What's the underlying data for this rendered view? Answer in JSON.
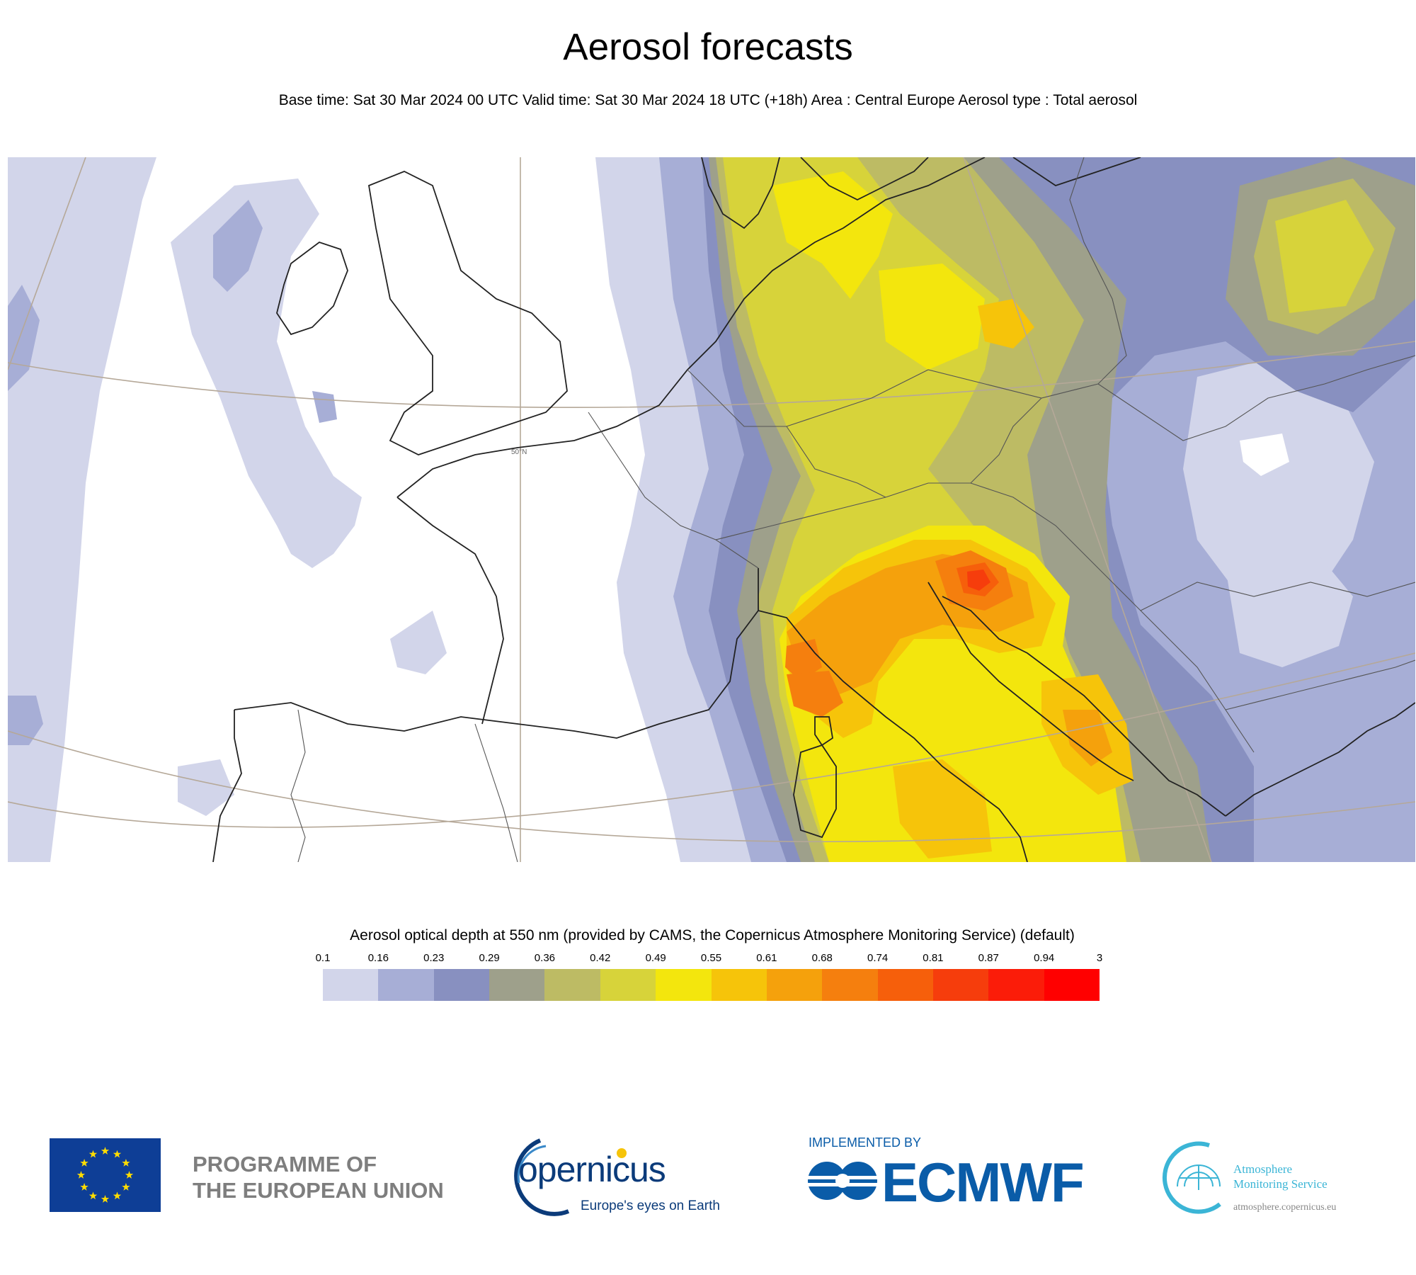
{
  "header": {
    "title": "Aerosol forecasts",
    "subtitle": "Base time: Sat 30 Mar 2024 00 UTC Valid time: Sat 30 Mar 2024 18 UTC (+18h) Area : Central Europe Aerosol type : Total aerosol"
  },
  "map": {
    "parallel_label": "50°N",
    "colors": {
      "land_border": "#222222",
      "graticule": "#b5a898"
    }
  },
  "legend": {
    "title": "Aerosol optical depth at 550 nm (provided by CAMS, the Copernicus Atmosphere Monitoring Service) (default)",
    "ticks": [
      "0.1",
      "0.16",
      "0.23",
      "0.29",
      "0.36",
      "0.42",
      "0.49",
      "0.55",
      "0.61",
      "0.68",
      "0.74",
      "0.81",
      "0.87",
      "0.94",
      "3"
    ],
    "colors": [
      "#d2d5ea",
      "#a7aed6",
      "#8890c0",
      "#9ea08b",
      "#bdbb64",
      "#d7d33a",
      "#f3e60d",
      "#f6c40a",
      "#f5a10c",
      "#f57f0e",
      "#f65f0b",
      "#f63d0c",
      "#fb1c09",
      "#ff0000"
    ]
  },
  "footer": {
    "eu_text_line1": "PROGRAMME OF",
    "eu_text_line2": "THE EUROPEAN UNION",
    "copernicus_word": "opernicus",
    "copernicus_tagline": "Europe's eyes on Earth",
    "implemented_by": "IMPLEMENTED BY",
    "ecmwf": "ECMWF",
    "ams_line1": "Atmosphere",
    "ams_line2": "Monitoring Service",
    "ams_url": "atmosphere.copernicus.eu"
  }
}
